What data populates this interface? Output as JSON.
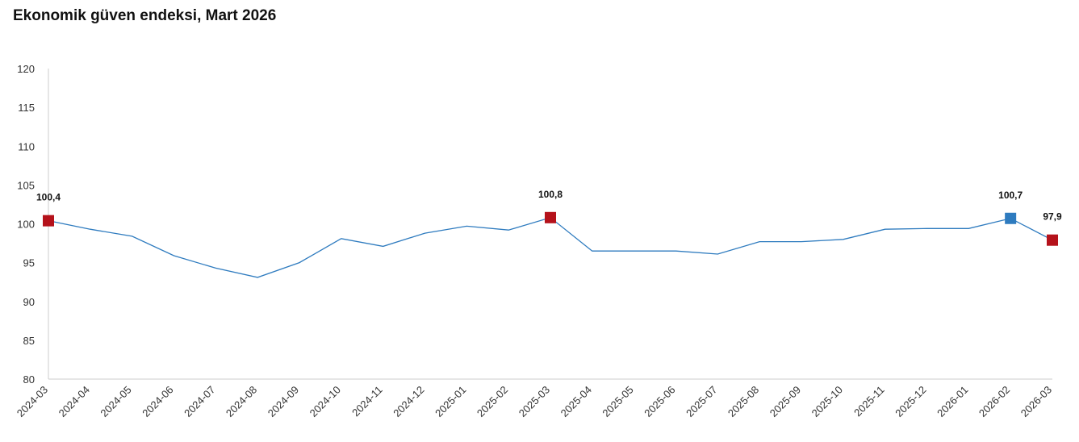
{
  "chart_data": {
    "type": "line",
    "title": "Ekonomik güven endeksi, Mart 2026",
    "xlabel": "",
    "ylabel": "",
    "ylim": [
      80,
      120
    ],
    "yticks": [
      80,
      85,
      90,
      95,
      100,
      105,
      110,
      115,
      120
    ],
    "grid": false,
    "legend": "none",
    "categories": [
      "2024-03",
      "2024-04",
      "2024-05",
      "2024-06",
      "2024-07",
      "2024-08",
      "2024-09",
      "2024-10",
      "2024-11",
      "2024-12",
      "2025-01",
      "2025-02",
      "2025-03",
      "2025-04",
      "2025-05",
      "2025-06",
      "2025-07",
      "2025-08",
      "2025-09",
      "2025-10",
      "2025-11",
      "2025-12",
      "2026-01",
      "2026-02",
      "2026-03"
    ],
    "series": [
      {
        "values": [
          100.4,
          99.3,
          98.4,
          95.9,
          94.3,
          93.1,
          95.0,
          98.1,
          97.1,
          98.8,
          99.7,
          99.2,
          100.8,
          96.5,
          96.5,
          96.5,
          96.1,
          97.7,
          97.7,
          98.0,
          99.3,
          99.4,
          99.4,
          100.7,
          97.9
        ],
        "color": "#2e7bbf"
      }
    ],
    "highlighted_points": [
      {
        "category": "2024-03",
        "value": 100.4,
        "label": "100,4",
        "color": "#b5121b"
      },
      {
        "category": "2025-03",
        "value": 100.8,
        "label": "100,8",
        "color": "#b5121b"
      },
      {
        "category": "2026-02",
        "value": 100.7,
        "label": "100,7",
        "color": "#2e7bbf"
      },
      {
        "category": "2026-03",
        "value": 97.9,
        "label": "97,9",
        "color": "#b5121b"
      }
    ],
    "axis_color": "#cccccc",
    "tick_color": "#333333"
  }
}
